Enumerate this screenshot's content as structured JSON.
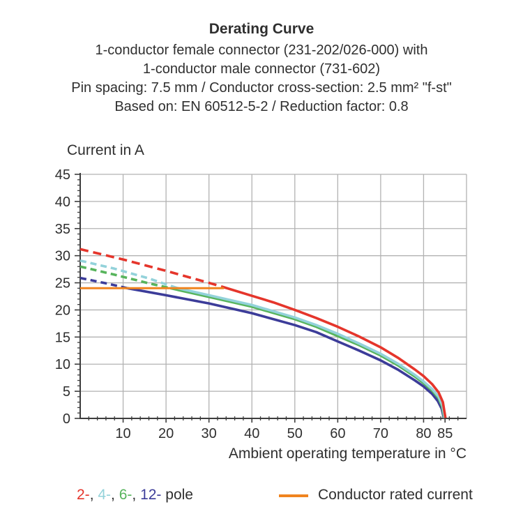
{
  "header": {
    "title": "Derating Curve",
    "subtitle_lines": [
      "1-conductor female connector (231-202/026-000) with",
      "1-conductor male connector (731-602)",
      "Pin spacing: 7.5 mm / Conductor cross-section: 2.5 mm² \"f-st\"",
      "Based on: EN 60512-5-2 / Reduction factor: 0.8"
    ]
  },
  "chart_data": {
    "type": "line",
    "title": "Derating Curve",
    "xlabel": "Ambient operating temperature in °C",
    "ylabel": "Current in A",
    "xlim": [
      0,
      90
    ],
    "ylim": [
      0,
      45
    ],
    "grid": true,
    "legend_position": "bottom",
    "x_gridlines": [
      10,
      20,
      30,
      40,
      50,
      60,
      70,
      80,
      90
    ],
    "y_gridlines": [
      5,
      10,
      15,
      20,
      25,
      30,
      35,
      40,
      45
    ],
    "x_tick_labels": [
      10,
      20,
      30,
      40,
      50,
      60,
      70,
      80,
      85
    ],
    "y_tick_labels": [
      0,
      5,
      10,
      15,
      20,
      25,
      30,
      35,
      40,
      45
    ],
    "x_minor_step": 2,
    "y_minor_step": 1,
    "colors": {
      "grid": "#b2b2b2",
      "axis": "#3d3d3d",
      "text": "#2f2f2f"
    },
    "series": [
      {
        "name": "12-pole",
        "color": "#3c3c99",
        "width": 3.6,
        "dash_pattern": "9 6",
        "dashed_points": [
          [
            0,
            25.9
          ],
          [
            6,
            24.9
          ],
          [
            11,
            24.0
          ]
        ],
        "solid_points": [
          [
            11,
            24.0
          ],
          [
            20,
            22.7
          ],
          [
            30,
            21.2
          ],
          [
            40,
            19.4
          ],
          [
            50,
            17.2
          ],
          [
            55,
            15.9
          ],
          [
            60,
            14.2
          ],
          [
            65,
            12.5
          ],
          [
            70,
            10.7
          ],
          [
            74,
            9.0
          ],
          [
            78,
            7.0
          ],
          [
            80,
            5.9
          ],
          [
            82,
            4.5
          ],
          [
            83.3,
            3.2
          ],
          [
            84.2,
            1.8
          ],
          [
            84.7,
            0.1
          ]
        ]
      },
      {
        "name": "6-pole",
        "color": "#57b45c",
        "width": 3.6,
        "dash_pattern": "9 6",
        "dashed_points": [
          [
            0,
            28.0
          ],
          [
            8,
            26.5
          ],
          [
            16,
            24.9
          ],
          [
            21,
            24.0
          ]
        ],
        "solid_points": [
          [
            21,
            24.0
          ],
          [
            30,
            22.4
          ],
          [
            40,
            20.6
          ],
          [
            50,
            18.3
          ],
          [
            55,
            16.9
          ],
          [
            60,
            15.2
          ],
          [
            65,
            13.5
          ],
          [
            70,
            11.6
          ],
          [
            74,
            9.8
          ],
          [
            78,
            7.7
          ],
          [
            80,
            6.5
          ],
          [
            82,
            5.1
          ],
          [
            83.5,
            3.7
          ],
          [
            84.3,
            2.2
          ],
          [
            84.8,
            0.1
          ]
        ]
      },
      {
        "name": "4-pole",
        "color": "#93d2da",
        "width": 3.6,
        "dash_pattern": "9 6",
        "dashed_points": [
          [
            0,
            29.1
          ],
          [
            8,
            27.6
          ],
          [
            16,
            25.8
          ],
          [
            22.5,
            24.05
          ]
        ],
        "solid_points": [
          [
            22.5,
            24.05
          ],
          [
            30,
            22.7
          ],
          [
            40,
            20.9
          ],
          [
            50,
            18.6
          ],
          [
            55,
            17.2
          ],
          [
            60,
            15.6
          ],
          [
            65,
            13.8
          ],
          [
            70,
            11.9
          ],
          [
            74,
            10.1
          ],
          [
            78,
            8.0
          ],
          [
            80,
            6.8
          ],
          [
            82,
            5.4
          ],
          [
            83.5,
            4.0
          ],
          [
            84.4,
            2.4
          ],
          [
            84.9,
            0.1
          ]
        ]
      },
      {
        "name": "2-pole",
        "color": "#e5352b",
        "width": 3.6,
        "dash_pattern": "12 7",
        "dashed_points": [
          [
            0,
            31.2
          ],
          [
            10,
            29.3
          ],
          [
            20,
            27.2
          ],
          [
            30,
            25.0
          ],
          [
            33,
            24.3
          ]
        ],
        "solid_points": [
          [
            33,
            24.3
          ],
          [
            40,
            22.6
          ],
          [
            45,
            21.4
          ],
          [
            50,
            20.0
          ],
          [
            55,
            18.5
          ],
          [
            60,
            16.9
          ],
          [
            65,
            15.1
          ],
          [
            70,
            13.1
          ],
          [
            74,
            11.2
          ],
          [
            78,
            9.0
          ],
          [
            80,
            7.8
          ],
          [
            82,
            6.3
          ],
          [
            83.5,
            4.8
          ],
          [
            84.5,
            3.0
          ],
          [
            85.1,
            0.1
          ]
        ]
      },
      {
        "name": "conductor-rated-current",
        "color": "#f0841f",
        "width": 3,
        "dash_pattern": "",
        "dashed_points": [],
        "solid_points": [
          [
            0,
            24
          ],
          [
            33.5,
            24
          ]
        ]
      }
    ],
    "rated_current_value": 24
  },
  "legend": {
    "poles": [
      {
        "label": "2-",
        "color": "#e5352b"
      },
      {
        "label": "4-",
        "color": "#93d2da"
      },
      {
        "label": "6-",
        "color": "#57b45c"
      },
      {
        "label": "12-",
        "color": "#3c3c99"
      }
    ],
    "separator": ", ",
    "suffix": " pole",
    "rated": {
      "label": "Conductor rated current",
      "color": "#f0841f"
    }
  }
}
